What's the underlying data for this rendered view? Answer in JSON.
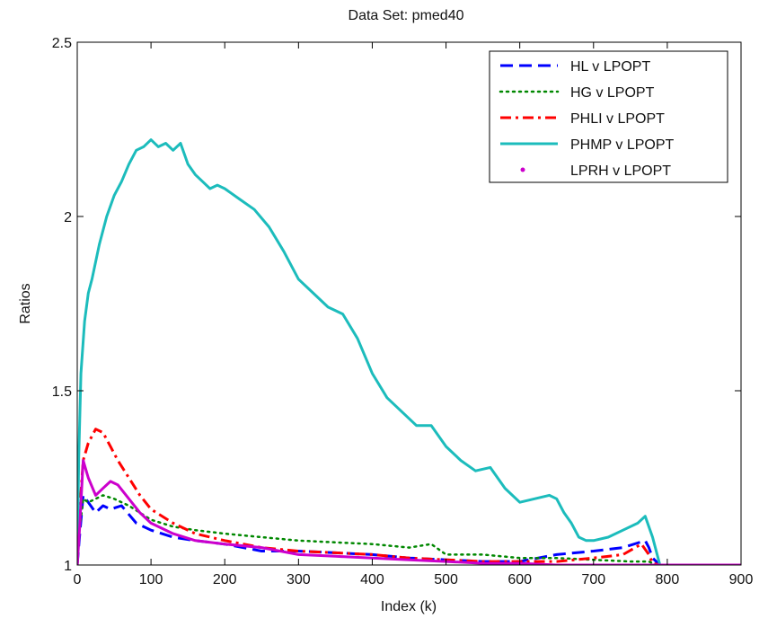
{
  "chart_data": {
    "type": "line",
    "title": "Data Set: pmed40",
    "xlabel": "Index (k)",
    "ylabel": "Ratios",
    "xlim": [
      0,
      900
    ],
    "ylim": [
      1,
      2.5
    ],
    "xticks": [
      0,
      100,
      200,
      300,
      400,
      500,
      600,
      700,
      800,
      900
    ],
    "yticks": [
      1,
      1.5,
      2,
      2.5
    ],
    "xtick_labels": [
      "0",
      "100",
      "200",
      "300",
      "400",
      "500",
      "600",
      "700",
      "800",
      "900"
    ],
    "ytick_labels": [
      "1",
      "1.5",
      "2",
      "2.5"
    ],
    "grid": false,
    "legend_position": "top-right",
    "series": [
      {
        "name": "HL v LPOPT",
        "color": "#0000ff",
        "style": "dashed",
        "x": [
          0,
          3,
          8,
          15,
          25,
          35,
          45,
          60,
          80,
          100,
          130,
          160,
          200,
          250,
          300,
          350,
          400,
          450,
          500,
          550,
          600,
          650,
          700,
          740,
          770,
          775,
          780,
          790,
          900
        ],
        "y": [
          1.0,
          1.08,
          1.2,
          1.18,
          1.15,
          1.17,
          1.16,
          1.17,
          1.12,
          1.1,
          1.08,
          1.07,
          1.06,
          1.04,
          1.04,
          1.035,
          1.03,
          1.02,
          1.015,
          1.01,
          1.01,
          1.03,
          1.04,
          1.05,
          1.07,
          1.05,
          1.02,
          1.0,
          1.0
        ]
      },
      {
        "name": "HG v LPOPT",
        "color": "#008800",
        "style": "dotted",
        "x": [
          0,
          3,
          8,
          15,
          25,
          35,
          50,
          70,
          100,
          130,
          160,
          200,
          250,
          300,
          350,
          400,
          450,
          480,
          500,
          550,
          600,
          650,
          700,
          750,
          775,
          780,
          790,
          900
        ],
        "y": [
          1.0,
          1.1,
          1.19,
          1.18,
          1.19,
          1.2,
          1.19,
          1.17,
          1.13,
          1.11,
          1.1,
          1.09,
          1.08,
          1.07,
          1.065,
          1.06,
          1.05,
          1.06,
          1.03,
          1.03,
          1.02,
          1.02,
          1.015,
          1.01,
          1.01,
          1.005,
          1.0,
          1.0
        ]
      },
      {
        "name": "PHLI v LPOPT",
        "color": "#ff0000",
        "style": "dashdot",
        "x": [
          0,
          3,
          8,
          15,
          25,
          35,
          45,
          55,
          70,
          85,
          100,
          130,
          160,
          200,
          250,
          300,
          350,
          400,
          450,
          500,
          550,
          600,
          650,
          700,
          740,
          765,
          775,
          780,
          790,
          900
        ],
        "y": [
          1.0,
          1.15,
          1.3,
          1.35,
          1.39,
          1.38,
          1.34,
          1.3,
          1.25,
          1.2,
          1.16,
          1.12,
          1.09,
          1.07,
          1.05,
          1.04,
          1.035,
          1.03,
          1.02,
          1.015,
          1.01,
          1.01,
          1.01,
          1.02,
          1.03,
          1.06,
          1.03,
          1.005,
          1.0,
          1.0
        ]
      },
      {
        "name": "PHMP v LPOPT",
        "color": "#1cbcbc",
        "style": "solid",
        "x": [
          0,
          2,
          5,
          10,
          15,
          20,
          30,
          40,
          50,
          60,
          70,
          80,
          90,
          100,
          110,
          120,
          130,
          140,
          150,
          160,
          170,
          180,
          190,
          200,
          220,
          240,
          260,
          280,
          300,
          320,
          340,
          360,
          380,
          400,
          420,
          440,
          460,
          480,
          500,
          520,
          540,
          560,
          580,
          600,
          620,
          640,
          650,
          660,
          670,
          680,
          690,
          700,
          720,
          740,
          760,
          770,
          780,
          785,
          790,
          900
        ],
        "y": [
          1.0,
          1.3,
          1.55,
          1.7,
          1.78,
          1.82,
          1.92,
          2.0,
          2.06,
          2.1,
          2.15,
          2.19,
          2.2,
          2.22,
          2.2,
          2.21,
          2.19,
          2.21,
          2.15,
          2.12,
          2.1,
          2.08,
          2.09,
          2.08,
          2.05,
          2.02,
          1.97,
          1.9,
          1.82,
          1.78,
          1.74,
          1.72,
          1.65,
          1.55,
          1.48,
          1.44,
          1.4,
          1.4,
          1.34,
          1.3,
          1.27,
          1.28,
          1.22,
          1.18,
          1.19,
          1.2,
          1.19,
          1.15,
          1.12,
          1.08,
          1.07,
          1.07,
          1.08,
          1.1,
          1.12,
          1.14,
          1.08,
          1.04,
          1.0,
          1.0
        ]
      },
      {
        "name": "LPRH v LPOPT",
        "color": "#cc00cc",
        "style": "solid-marker",
        "x": [
          0,
          3,
          8,
          15,
          25,
          35,
          45,
          55,
          70,
          85,
          100,
          130,
          160,
          200,
          250,
          300,
          350,
          400,
          450,
          500,
          550,
          600,
          650,
          700,
          750,
          780,
          790,
          900
        ],
        "y": [
          1.0,
          1.1,
          1.3,
          1.25,
          1.2,
          1.22,
          1.24,
          1.23,
          1.19,
          1.15,
          1.12,
          1.09,
          1.07,
          1.06,
          1.05,
          1.03,
          1.025,
          1.02,
          1.015,
          1.01,
          1.005,
          1.005,
          1.0,
          1.0,
          1.0,
          1.0,
          1.0,
          1.0
        ]
      }
    ]
  }
}
